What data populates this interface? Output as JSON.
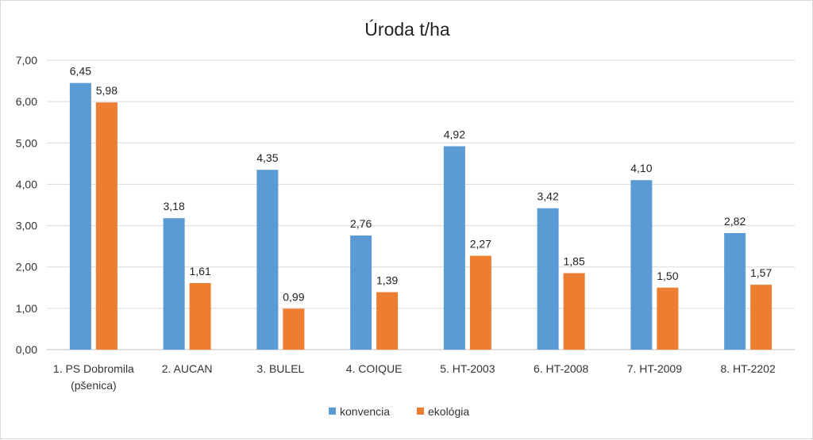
{
  "chart_data": {
    "type": "bar",
    "title": "Úroda t/ha",
    "xlabel": "",
    "ylabel": "",
    "ylim": [
      0,
      7
    ],
    "y_ticks": [
      "0,00",
      "1,00",
      "2,00",
      "3,00",
      "4,00",
      "5,00",
      "6,00",
      "7,00"
    ],
    "grid": true,
    "legend_position": "bottom",
    "categories": [
      [
        "1. PS Dobromila",
        "(pšenica)"
      ],
      [
        "2. AUCAN"
      ],
      [
        "3. BULEL"
      ],
      [
        "4. COIQUE"
      ],
      [
        "5. HT-2003"
      ],
      [
        "6. HT-2008"
      ],
      [
        "7. HT-2009"
      ],
      [
        "8. HT-2202"
      ]
    ],
    "series": [
      {
        "name": "konvencia",
        "color": "#5b9bd5",
        "values": [
          6.45,
          3.18,
          4.35,
          2.76,
          4.92,
          3.42,
          4.1,
          2.82
        ],
        "labels": [
          "6,45",
          "3,18",
          "4,35",
          "2,76",
          "4,92",
          "3,42",
          "4,10",
          "2,82"
        ]
      },
      {
        "name": "ekológia",
        "color": "#ed7d31",
        "values": [
          5.98,
          1.61,
          0.99,
          1.39,
          2.27,
          1.85,
          1.5,
          1.57
        ],
        "labels": [
          "5,98",
          "1,61",
          "0,99",
          "1,39",
          "2,27",
          "1,85",
          "1,50",
          "1,57"
        ]
      }
    ]
  }
}
